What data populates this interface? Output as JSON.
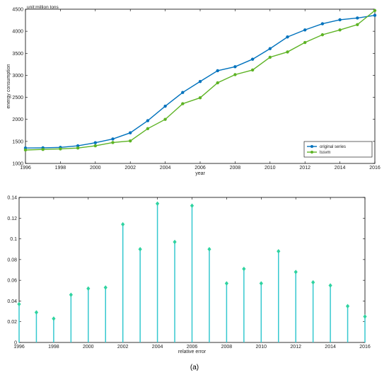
{
  "caption": "(a)",
  "colors": {
    "original": "#0072BD",
    "lssvm": "#5DB324",
    "stem": "#35C8CF",
    "marker": "#2FD3A0",
    "frame": "#000000",
    "grid": "#cccccc"
  },
  "chart_data": [
    {
      "type": "line",
      "unit_label": "unit:million tons",
      "xlabel": "year",
      "ylabel": "energy consumption",
      "xlim": [
        1996,
        2016
      ],
      "ylim": [
        1000,
        4500
      ],
      "xticks": [
        1996,
        1998,
        2000,
        2002,
        2004,
        2006,
        2008,
        2010,
        2012,
        2014,
        2016
      ],
      "yticks": [
        1000,
        1500,
        2000,
        2500,
        3000,
        3500,
        4000,
        4500
      ],
      "legend_position": "bottom-right",
      "x": [
        1996,
        1997,
        1998,
        1999,
        2000,
        2001,
        2002,
        2003,
        2004,
        2005,
        2006,
        2007,
        2008,
        2009,
        2010,
        2011,
        2012,
        2013,
        2014,
        2015,
        2016
      ],
      "series": [
        {
          "name": "original series",
          "values": [
            1350,
            1355,
            1365,
            1400,
            1470,
            1555,
            1695,
            1970,
            2300,
            2610,
            2860,
            3105,
            3195,
            3365,
            3605,
            3870,
            4030,
            4170,
            4260,
            4300,
            4360
          ]
        },
        {
          "name": "lssvm",
          "values": [
            1305,
            1318,
            1330,
            1350,
            1400,
            1475,
            1510,
            1790,
            2000,
            2355,
            2490,
            2830,
            3015,
            3120,
            3410,
            3530,
            3745,
            3920,
            4030,
            4150,
            4470
          ]
        }
      ]
    },
    {
      "type": "stem",
      "xlabel": "relative error",
      "xlim": [
        1996,
        2016
      ],
      "ylim": [
        0,
        0.14
      ],
      "xticks": [
        1996,
        1998,
        2000,
        2002,
        2004,
        2006,
        2008,
        2010,
        2012,
        2014,
        2016
      ],
      "yticks": [
        0,
        0.02,
        0.04,
        0.06,
        0.08,
        0.1,
        0.12,
        0.14
      ],
      "ytick_labels": [
        "0",
        "0.02",
        "0.04",
        "0.06",
        "0.08",
        "0.1",
        "0.12",
        "0.14"
      ],
      "x": [
        1996,
        1997,
        1998,
        1999,
        2000,
        2001,
        2002,
        2003,
        2004,
        2005,
        2006,
        2007,
        2008,
        2009,
        2010,
        2011,
        2012,
        2013,
        2014,
        2015,
        2016
      ],
      "values": [
        0.037,
        0.029,
        0.023,
        0.046,
        0.052,
        0.053,
        0.114,
        0.09,
        0.134,
        0.097,
        0.132,
        0.09,
        0.057,
        0.071,
        0.057,
        0.088,
        0.068,
        0.058,
        0.055,
        0.035,
        0.025
      ]
    }
  ]
}
